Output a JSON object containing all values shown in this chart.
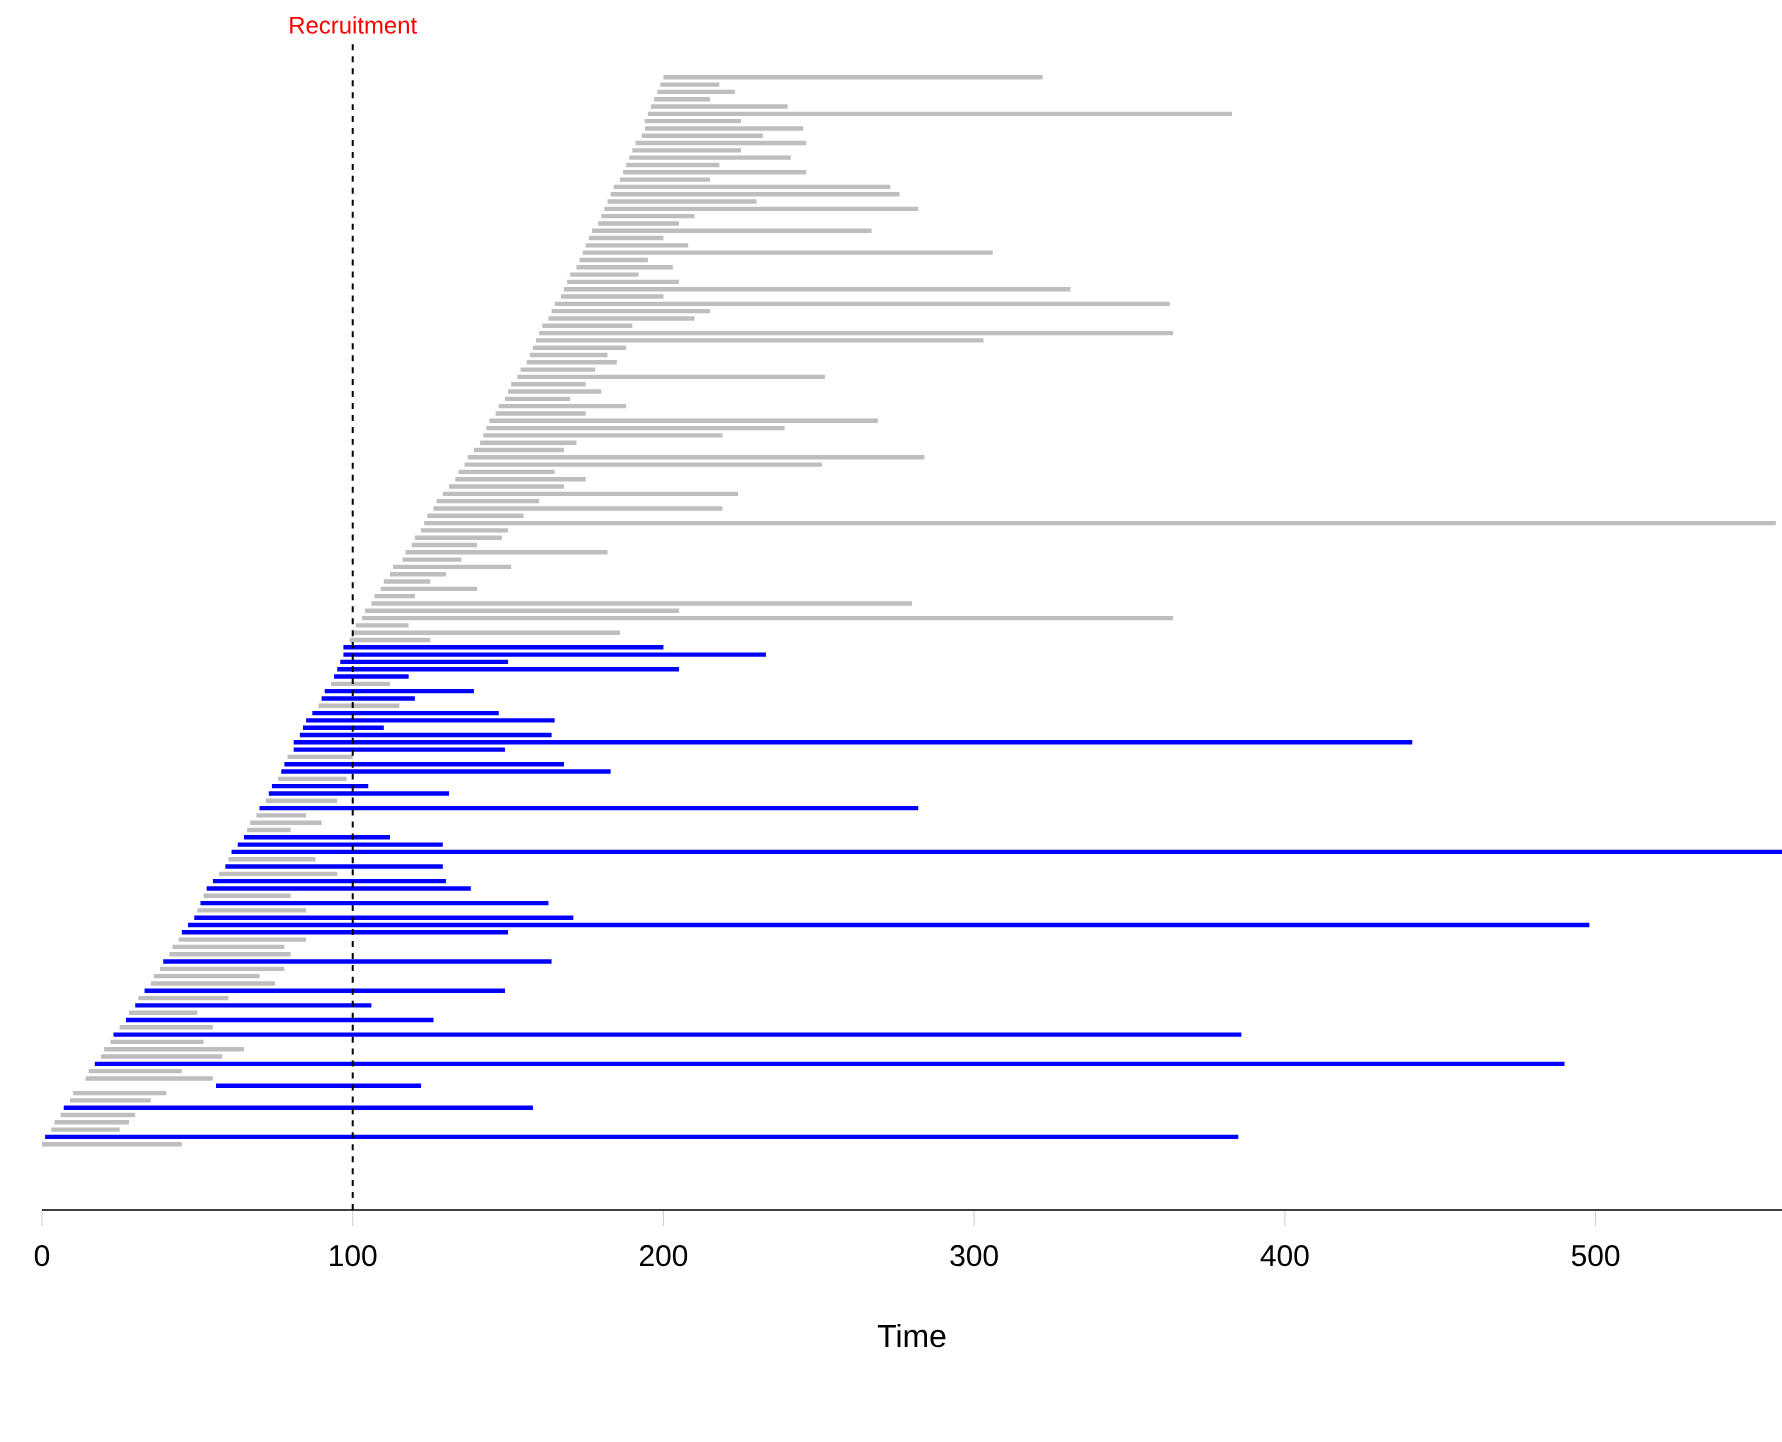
{
  "chart_data": {
    "type": "bar",
    "orientation": "horizontal",
    "xlabel": "Time",
    "xlim": [
      0,
      560
    ],
    "xticks": [
      0,
      100,
      200,
      300,
      400,
      500
    ],
    "ref_lines": [
      {
        "axis": "x",
        "value": 100,
        "label": "Recruitment",
        "color": "#000000",
        "line_style": "dashed"
      }
    ],
    "categories": [
      null,
      null,
      null,
      null,
      null,
      null,
      null,
      null,
      null,
      null,
      null,
      null,
      null,
      null,
      null,
      null,
      null,
      null,
      null,
      null,
      null,
      null,
      null,
      null,
      null,
      null,
      null,
      null,
      null,
      null,
      null,
      null,
      null,
      null,
      null,
      null,
      null,
      null,
      null,
      null,
      null,
      null,
      null,
      null,
      null,
      null,
      null,
      null,
      null,
      null,
      null,
      null,
      null,
      null,
      null,
      null,
      null,
      null,
      null,
      null,
      null,
      null,
      null,
      null,
      null,
      null,
      null,
      null,
      null,
      null,
      null,
      null,
      null,
      null,
      null,
      null,
      null,
      null,
      null,
      null,
      null,
      null,
      null,
      null,
      null,
      null,
      null,
      null,
      null,
      null,
      null,
      null,
      null,
      null,
      null,
      null,
      null,
      null,
      null,
      null,
      null,
      null,
      null,
      null,
      null,
      null,
      null,
      null,
      null,
      null,
      null,
      null,
      null,
      null,
      null,
      null,
      null,
      null,
      null,
      null,
      null,
      null,
      null,
      null,
      null,
      null,
      null,
      null,
      null,
      null,
      null,
      null,
      null,
      null,
      null,
      null,
      null,
      null,
      null,
      null,
      null,
      null,
      null,
      null,
      null,
      null,
      null
    ],
    "base": [
      200,
      199,
      198,
      197,
      196,
      195,
      194,
      194,
      193,
      191,
      190,
      189,
      188,
      187,
      186,
      184,
      183,
      182,
      181,
      180,
      179,
      177,
      176,
      175,
      174,
      173,
      172,
      170,
      169,
      168,
      167,
      165,
      164,
      163,
      161,
      160,
      159,
      158,
      157,
      156,
      154,
      153,
      151,
      150,
      149,
      147,
      146,
      144,
      143,
      142,
      141,
      139,
      137,
      136,
      134,
      133,
      131,
      129,
      127,
      126,
      124,
      123,
      122,
      120,
      119,
      117,
      116,
      113,
      112,
      110,
      109,
      107,
      106,
      104,
      103,
      101,
      100,
      99,
      97,
      97,
      96,
      95,
      94,
      93,
      91,
      90,
      89,
      87,
      85,
      84,
      83,
      81,
      81,
      79,
      78,
      77,
      76,
      74,
      73,
      72,
      70,
      69,
      67,
      66,
      65,
      63,
      61,
      60,
      59,
      57,
      55,
      53,
      52,
      51,
      50,
      49,
      47,
      45,
      44,
      42,
      41,
      39,
      38,
      36,
      35,
      33,
      31,
      30,
      28,
      27,
      25,
      23,
      22,
      20,
      19,
      17,
      15,
      14,
      56,
      10,
      9,
      7,
      6,
      4,
      3,
      1,
      0
    ],
    "values": [
      122,
      19,
      25,
      18,
      44,
      188,
      31,
      51,
      39,
      55,
      35,
      52,
      30,
      59,
      29,
      89,
      93,
      48,
      101,
      30,
      26,
      90,
      24,
      33,
      132,
      22,
      31,
      22,
      36,
      163,
      33,
      198,
      51,
      47,
      29,
      204,
      144,
      30,
      25,
      29,
      24,
      99,
      24,
      30,
      21,
      41,
      29,
      125,
      96,
      77,
      31,
      29,
      147,
      115,
      31,
      42,
      37,
      95,
      33,
      93,
      31,
      435,
      28,
      28,
      21,
      65,
      19,
      38,
      18,
      15,
      31,
      13,
      174,
      101,
      261,
      17,
      86,
      26,
      103,
      136,
      54,
      110,
      24,
      19,
      48,
      30,
      26,
      60,
      80,
      26,
      81,
      360,
      68,
      21,
      90,
      106,
      22,
      31,
      58,
      23,
      212,
      16,
      23,
      14,
      47,
      66,
      499,
      28,
      70,
      38,
      75,
      85,
      28,
      112,
      35,
      122,
      451,
      105,
      41,
      36,
      39,
      125,
      40,
      34,
      40,
      116,
      29,
      76,
      22,
      99,
      30,
      363,
      30,
      45,
      39,
      473,
      30,
      41,
      66,
      30,
      26,
      151,
      24,
      24,
      22,
      384,
      45
    ],
    "colors": [
      "#bebebe",
      "#bebebe",
      "#bebebe",
      "#bebebe",
      "#bebebe",
      "#bebebe",
      "#bebebe",
      "#bebebe",
      "#bebebe",
      "#bebebe",
      "#bebebe",
      "#bebebe",
      "#bebebe",
      "#bebebe",
      "#bebebe",
      "#bebebe",
      "#bebebe",
      "#bebebe",
      "#bebebe",
      "#bebebe",
      "#bebebe",
      "#bebebe",
      "#bebebe",
      "#bebebe",
      "#bebebe",
      "#bebebe",
      "#bebebe",
      "#bebebe",
      "#bebebe",
      "#bebebe",
      "#bebebe",
      "#bebebe",
      "#bebebe",
      "#bebebe",
      "#bebebe",
      "#bebebe",
      "#bebebe",
      "#bebebe",
      "#bebebe",
      "#bebebe",
      "#bebebe",
      "#bebebe",
      "#bebebe",
      "#bebebe",
      "#bebebe",
      "#bebebe",
      "#bebebe",
      "#bebebe",
      "#bebebe",
      "#bebebe",
      "#bebebe",
      "#bebebe",
      "#bebebe",
      "#bebebe",
      "#bebebe",
      "#bebebe",
      "#bebebe",
      "#bebebe",
      "#bebebe",
      "#bebebe",
      "#bebebe",
      "#bebebe",
      "#bebebe",
      "#bebebe",
      "#bebebe",
      "#bebebe",
      "#bebebe",
      "#bebebe",
      "#bebebe",
      "#bebebe",
      "#bebebe",
      "#bebebe",
      "#bebebe",
      "#bebebe",
      "#bebebe",
      "#bebebe",
      "#bebebe",
      "#bebebe",
      "#0000ff",
      "#0000ff",
      "#0000ff",
      "#0000ff",
      "#0000ff",
      "#bebebe",
      "#0000ff",
      "#0000ff",
      "#bebebe",
      "#0000ff",
      "#0000ff",
      "#0000ff",
      "#0000ff",
      "#0000ff",
      "#0000ff",
      "#bebebe",
      "#0000ff",
      "#0000ff",
      "#bebebe",
      "#0000ff",
      "#0000ff",
      "#bebebe",
      "#0000ff",
      "#bebebe",
      "#bebebe",
      "#bebebe",
      "#0000ff",
      "#0000ff",
      "#0000ff",
      "#bebebe",
      "#0000ff",
      "#bebebe",
      "#0000ff",
      "#0000ff",
      "#bebebe",
      "#0000ff",
      "#bebebe",
      "#0000ff",
      "#0000ff",
      "#0000ff",
      "#bebebe",
      "#bebebe",
      "#bebebe",
      "#0000ff",
      "#bebebe",
      "#bebebe",
      "#bebebe",
      "#0000ff",
      "#bebebe",
      "#0000ff",
      "#bebebe",
      "#0000ff",
      "#bebebe",
      "#0000ff",
      "#bebebe",
      "#bebebe",
      "#bebebe",
      "#0000ff",
      "#bebebe",
      "#bebebe",
      "#0000ff",
      "#bebebe",
      "#bebebe",
      "#0000ff",
      "#bebebe",
      "#bebebe",
      "#bebebe",
      "#0000ff",
      "#bebebe"
    ]
  }
}
